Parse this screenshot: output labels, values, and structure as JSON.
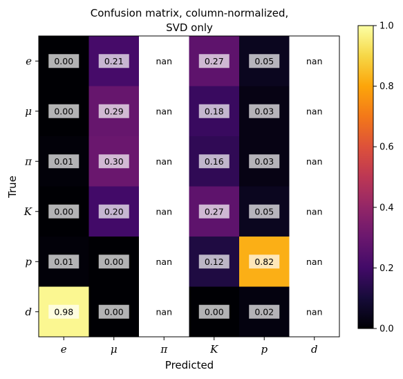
{
  "chart_data": {
    "type": "heatmap",
    "title_lines": [
      "Confusion matrix, column-normalized,",
      "SVD only"
    ],
    "xlabel": "Predicted",
    "ylabel": "True",
    "x_categories": [
      "e",
      "μ",
      "π",
      "K",
      "p",
      "d"
    ],
    "y_categories": [
      "e",
      "μ",
      "π",
      "K",
      "p",
      "d"
    ],
    "values": [
      [
        0.0,
        0.21,
        null,
        0.27,
        0.05,
        null
      ],
      [
        0.0,
        0.29,
        null,
        0.18,
        0.03,
        null
      ],
      [
        0.01,
        0.3,
        null,
        0.16,
        0.03,
        null
      ],
      [
        0.0,
        0.2,
        null,
        0.27,
        0.05,
        null
      ],
      [
        0.01,
        0.0,
        null,
        0.12,
        0.82,
        null
      ],
      [
        0.98,
        0.0,
        null,
        0.0,
        0.02,
        null
      ]
    ],
    "cell_labels": [
      [
        "0.00",
        "0.21",
        "nan",
        "0.27",
        "0.05",
        "nan"
      ],
      [
        "0.00",
        "0.29",
        "nan",
        "0.18",
        "0.03",
        "nan"
      ],
      [
        "0.01",
        "0.30",
        "nan",
        "0.16",
        "0.03",
        "nan"
      ],
      [
        "0.00",
        "0.20",
        "nan",
        "0.27",
        "0.05",
        "nan"
      ],
      [
        "0.01",
        "0.00",
        "nan",
        "0.12",
        "0.82",
        "nan"
      ],
      [
        "0.98",
        "0.00",
        "nan",
        "0.00",
        "0.02",
        "nan"
      ]
    ],
    "colormap": "inferno",
    "vmin": 0.0,
    "vmax": 1.0,
    "colorbar_ticks": [
      "0.0",
      "0.2",
      "0.4",
      "0.6",
      "0.8",
      "1.0"
    ],
    "nan_color": "#ffffff",
    "label_box_color": "#ffffff"
  }
}
